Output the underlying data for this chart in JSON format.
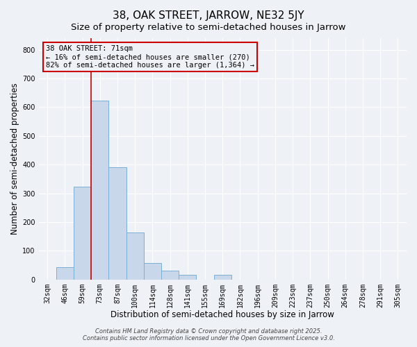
{
  "title": "38, OAK STREET, JARROW, NE32 5JY",
  "subtitle": "Size of property relative to semi-detached houses in Jarrow",
  "xlabel": "Distribution of semi-detached houses by size in Jarrow",
  "ylabel": "Number of semi-detached properties",
  "bar_labels": [
    "32sqm",
    "46sqm",
    "59sqm",
    "73sqm",
    "87sqm",
    "100sqm",
    "114sqm",
    "128sqm",
    "141sqm",
    "155sqm",
    "169sqm",
    "182sqm",
    "196sqm",
    "209sqm",
    "223sqm",
    "237sqm",
    "250sqm",
    "264sqm",
    "278sqm",
    "291sqm",
    "305sqm"
  ],
  "bar_values": [
    0,
    42,
    323,
    622,
    390,
    163,
    58,
    30,
    17,
    0,
    16,
    0,
    0,
    0,
    0,
    0,
    0,
    0,
    0,
    0,
    0
  ],
  "bar_color": "#c8d8ea",
  "bar_edge_color": "#7aafd4",
  "vline_color": "#cc0000",
  "annotation_title": "38 OAK STREET: 71sqm",
  "annotation_line1": "← 16% of semi-detached houses are smaller (270)",
  "annotation_line2": "82% of semi-detached houses are larger (1,364) →",
  "annotation_box_color": "#cc0000",
  "ylim": [
    0,
    840
  ],
  "yticks": [
    0,
    100,
    200,
    300,
    400,
    500,
    600,
    700,
    800
  ],
  "footer1": "Contains HM Land Registry data © Crown copyright and database right 2025.",
  "footer2": "Contains public sector information licensed under the Open Government Licence v3.0.",
  "bg_color": "#eef2f7",
  "grid_color": "#ffffff",
  "title_fontsize": 11,
  "subtitle_fontsize": 9.5,
  "axis_label_fontsize": 8.5,
  "tick_fontsize": 7,
  "footer_fontsize": 6,
  "ann_fontsize": 7.5
}
